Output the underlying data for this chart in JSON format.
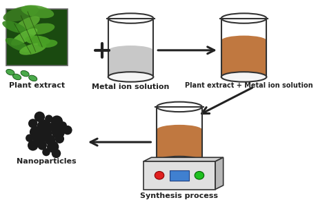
{
  "background_color": "#ffffff",
  "title": "",
  "labels": {
    "plant_extract": "Plant extract",
    "metal_ion": "Metal ion solution",
    "mixture": "Plant extract + Metal ion solution",
    "synthesis": "Synthesis process",
    "nanoparticles": "Nanoparticles"
  },
  "colors": {
    "beaker_outline": "#333333",
    "liquid_gray": "#c8c8c8",
    "liquid_brown": "#c07840",
    "arrow": "#222222",
    "plus": "#222222",
    "nanoparticle": "#1a1a1a",
    "hotplate_body": "#e0e0e0",
    "hotplate_top": "#d0d0d0",
    "hotplate_side": "#b8b8b8",
    "button_red": "#e02020",
    "button_green": "#20c020",
    "button_blue": "#4080d0",
    "leaf_green1": "#2a5a1a",
    "leaf_green2": "#4aaa4a",
    "leaf_green3": "#80cc60",
    "text": "#222222"
  },
  "font_size_label": 8,
  "font_family": "DejaVu Sans"
}
